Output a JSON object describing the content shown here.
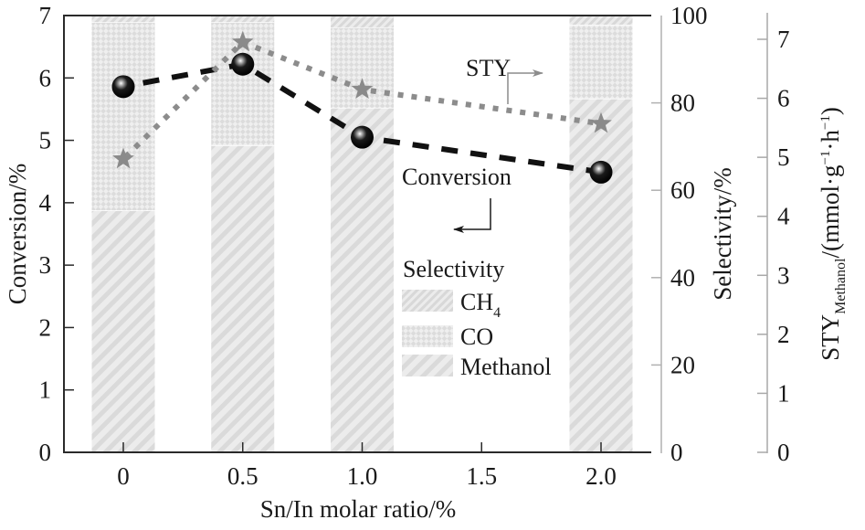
{
  "chart_data": {
    "type": "bar",
    "subtype": "stacked-bar-with-lines-triple-axis",
    "x": [
      0,
      0.5,
      1.0,
      2.0
    ],
    "xticks": [
      "0",
      "0.5",
      "1.0",
      "1.5",
      "2.0"
    ],
    "xtick_values": [
      0,
      0.5,
      1.0,
      1.5,
      2.0
    ],
    "xlim": [
      -0.25,
      2.22
    ],
    "xlabel": "Sn/In molar ratio/%",
    "axes": {
      "left": {
        "label": "Conversion/%",
        "ylim": [
          0,
          7
        ],
        "ticks": [
          "0",
          "1",
          "2",
          "3",
          "4",
          "5",
          "6",
          "7"
        ]
      },
      "right": {
        "label": "Selectivity/%",
        "ylim": [
          0,
          100
        ],
        "ticks": [
          "0",
          "20",
          "40",
          "60",
          "80",
          "100"
        ]
      },
      "far_right": {
        "label_main": "STY",
        "label_sub": "Methanol",
        "label_unit": "/(mmol·g",
        "label_sup1": "−1",
        "label_mid": "·h",
        "label_sup2": "−1",
        "label_end": ")",
        "ylim": [
          0,
          7
        ],
        "ticks": [
          "0",
          "1",
          "2",
          "3",
          "4",
          "5",
          "6",
          "7"
        ]
      }
    },
    "stacked_series": [
      {
        "name": "Methanol",
        "axis": "right",
        "values": [
          55.4,
          70.3,
          78.9,
          81.0
        ]
      },
      {
        "name": "CO",
        "axis": "right",
        "values": [
          43.1,
          28.2,
          18.4,
          16.9
        ]
      },
      {
        "name": "CH4",
        "axis": "right",
        "values": [
          1.5,
          1.5,
          2.7,
          2.1
        ]
      }
    ],
    "line_series": [
      {
        "name": "Conversion",
        "axis": "left",
        "marker": "sphere",
        "style": "dashed",
        "values": [
          5.86,
          6.22,
          5.05,
          4.49
        ]
      },
      {
        "name": "STY",
        "axis": "far_right",
        "marker": "star",
        "style": "dotted",
        "values": [
          4.97,
          6.95,
          6.15,
          5.57
        ]
      }
    ],
    "annotations": {
      "sty": "STY",
      "conversion": "Conversion"
    },
    "legend": {
      "title": "Selectivity",
      "entries": [
        {
          "name": "CH",
          "sub": "4"
        },
        {
          "name": "CO",
          "sub": ""
        },
        {
          "name": "Methanol",
          "sub": ""
        }
      ],
      "placement": "center-right"
    },
    "colors": {
      "bar_fill": "#e6e6e6",
      "bar_stripe": "#d2d2d2",
      "conversion_line": "#111111",
      "sty_line": "#8c8c8c",
      "star": "#8a8a8a",
      "axis_dark": "#2a2a2a",
      "axis_grey": "#a8a8a8"
    }
  }
}
